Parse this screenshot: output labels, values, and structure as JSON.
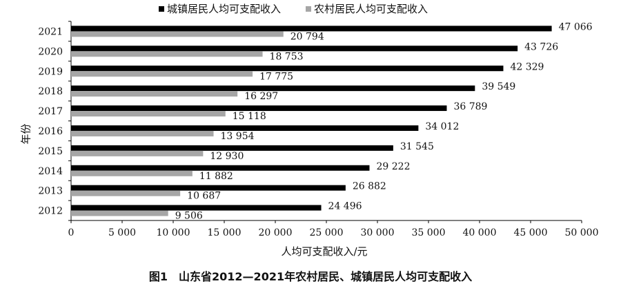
{
  "figure_caption": "图1　山东省2012—2021年农村居民、城镇居民人均可支配收入",
  "colors": {
    "urban": "#000000",
    "rural": "#a6a6a6"
  },
  "chart_data": {
    "type": "bar",
    "orientation": "horizontal",
    "title": "",
    "xlabel": "人均可支配收入/元",
    "ylabel": "年份",
    "xlim": [
      0,
      50000
    ],
    "x_ticks": [
      "0",
      "5 000",
      "10 000",
      "15 000",
      "20 000",
      "25 000",
      "30 000",
      "35 000",
      "40 000",
      "45 000",
      "50 000"
    ],
    "x_tick_values": [
      0,
      5000,
      10000,
      15000,
      20000,
      25000,
      30000,
      35000,
      40000,
      45000,
      50000
    ],
    "legend_position": "top",
    "grid": false,
    "categories": [
      "2021",
      "2020",
      "2019",
      "2018",
      "2017",
      "2016",
      "2015",
      "2014",
      "2013",
      "2012"
    ],
    "series": [
      {
        "name": "城镇居民人均可支配收入",
        "color": "#000000",
        "values": [
          47066,
          43726,
          42329,
          39549,
          36789,
          34012,
          31545,
          29222,
          26882,
          24496
        ],
        "labels": [
          "47 066",
          "43 726",
          "42 329",
          "39 549",
          "36 789",
          "34 012",
          "31 545",
          "29 222",
          "26 882",
          "24 496"
        ]
      },
      {
        "name": "农村居民人均可支配收入",
        "color": "#a6a6a6",
        "values": [
          20794,
          18753,
          17775,
          16297,
          15118,
          13954,
          12930,
          11882,
          10687,
          9506
        ],
        "labels": [
          "20 794",
          "18 753",
          "17 775",
          "16 297",
          "15 118",
          "13 954",
          "12 930",
          "11 882",
          "10 687",
          "9 506"
        ]
      }
    ]
  }
}
